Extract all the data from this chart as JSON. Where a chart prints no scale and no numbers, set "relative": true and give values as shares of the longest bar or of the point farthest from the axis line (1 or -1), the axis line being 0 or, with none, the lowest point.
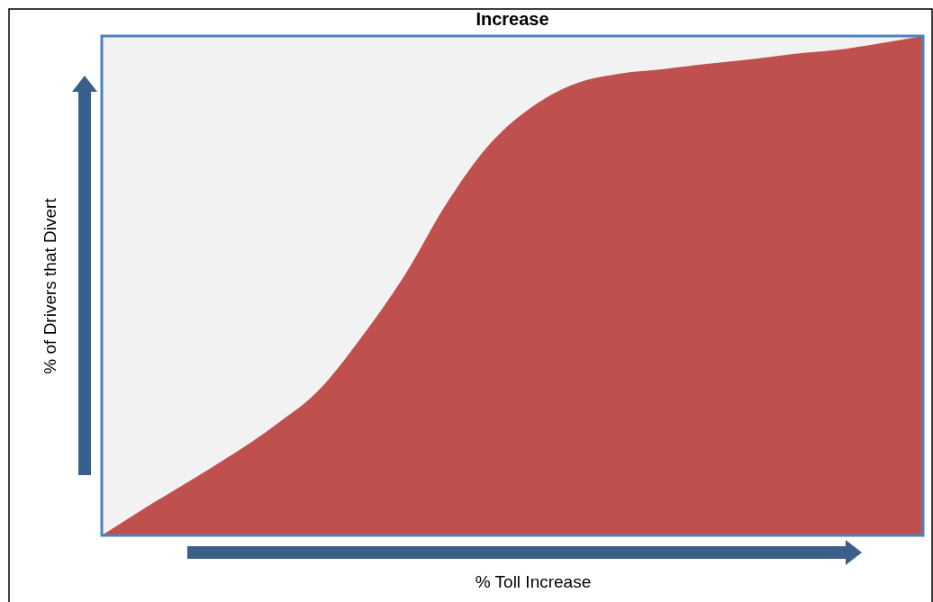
{
  "chart_data": {
    "type": "area",
    "title": "Increase",
    "xlabel": "% Toll Increase",
    "ylabel": "% of Drivers that Divert",
    "relative": true,
    "color": "#c0504d",
    "categories": [
      null,
      null,
      null,
      null,
      null,
      null,
      null,
      null,
      null,
      null,
      null,
      null,
      null,
      null,
      null,
      null,
      null,
      null,
      null,
      null
    ],
    "values": [
      0,
      0.055,
      0.107,
      0.161,
      0.22,
      0.289,
      0.396,
      0.52,
      0.668,
      0.786,
      0.861,
      0.906,
      0.925,
      0.934,
      0.944,
      0.953,
      0.964,
      0.972,
      0.985,
      1
    ]
  }
}
